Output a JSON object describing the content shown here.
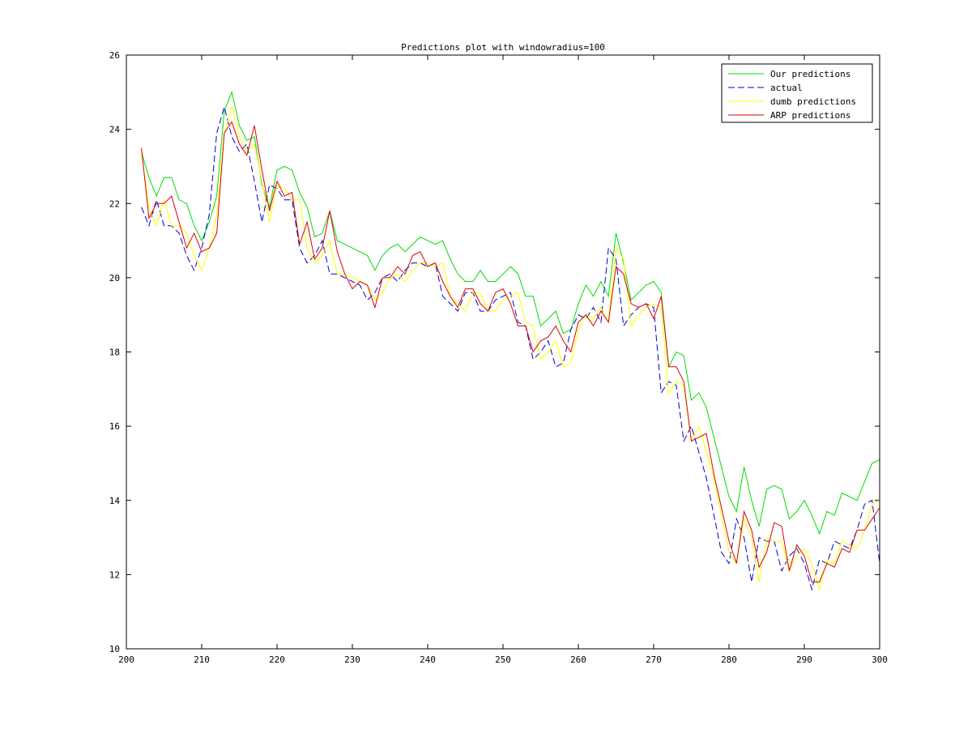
{
  "chart_data": {
    "type": "line",
    "title": "Predictions plot with windowradius=100",
    "xlabel": "",
    "ylabel": "",
    "xlim": [
      200,
      300
    ],
    "ylim": [
      10,
      26
    ],
    "x_ticks": [
      "200",
      "210",
      "220",
      "230",
      "240",
      "250",
      "260",
      "270",
      "280",
      "290",
      "300"
    ],
    "y_ticks": [
      "10",
      "12",
      "14",
      "16",
      "18",
      "20",
      "22",
      "24",
      "26"
    ],
    "grid": false,
    "legend_position": "top-right",
    "x": [
      202,
      203,
      204,
      205,
      206,
      207,
      208,
      209,
      210,
      211,
      212,
      213,
      214,
      215,
      216,
      217,
      218,
      219,
      220,
      221,
      222,
      223,
      224,
      225,
      226,
      227,
      228,
      229,
      230,
      231,
      232,
      233,
      234,
      235,
      236,
      237,
      238,
      239,
      240,
      241,
      242,
      243,
      244,
      245,
      246,
      247,
      248,
      249,
      250,
      251,
      252,
      253,
      254,
      255,
      256,
      257,
      258,
      259,
      260,
      261,
      262,
      263,
      264,
      265,
      266,
      267,
      268,
      269,
      270,
      271,
      272,
      273,
      274,
      275,
      276,
      277,
      278,
      279,
      280,
      281,
      282,
      283,
      284,
      285,
      286,
      287,
      288,
      289,
      290,
      291,
      292,
      293,
      294,
      295,
      296,
      297,
      298,
      299,
      300
    ],
    "series": [
      {
        "name": "Our predictions",
        "color": "#00dd00",
        "dash": "solid",
        "values": [
          23.4,
          22.7,
          22.2,
          22.7,
          22.7,
          22.1,
          22.0,
          21.4,
          21.0,
          21.5,
          22.2,
          24.5,
          25.0,
          24.1,
          23.7,
          23.8,
          22.5,
          21.9,
          22.9,
          23.0,
          22.9,
          22.3,
          21.9,
          21.1,
          21.2,
          21.8,
          21.0,
          20.9,
          20.8,
          20.7,
          20.6,
          20.2,
          20.6,
          20.8,
          20.9,
          20.7,
          20.9,
          21.1,
          21.0,
          20.9,
          21.0,
          20.5,
          20.1,
          19.9,
          19.9,
          20.2,
          19.9,
          19.9,
          20.1,
          20.3,
          20.1,
          19.5,
          19.5,
          18.7,
          18.9,
          19.1,
          18.5,
          18.6,
          19.3,
          19.8,
          19.5,
          19.9,
          19.5,
          21.2,
          20.4,
          19.4,
          19.6,
          19.8,
          19.9,
          19.6,
          17.6,
          18.0,
          17.9,
          16.7,
          16.9,
          16.5,
          15.7,
          14.9,
          14.1,
          13.7,
          14.9,
          14.0,
          13.3,
          14.3,
          14.4,
          14.3,
          13.5,
          13.7,
          14.0,
          13.6,
          13.1,
          13.7,
          13.6,
          14.2,
          14.1,
          14.0,
          14.5,
          15.0,
          15.1
        ]
      },
      {
        "name": "actual",
        "color": "#0000cc",
        "dash": "dashed",
        "values": [
          21.9,
          21.4,
          22.1,
          21.4,
          21.4,
          21.2,
          20.6,
          20.2,
          20.8,
          21.7,
          23.9,
          24.6,
          23.8,
          23.4,
          23.6,
          22.6,
          21.5,
          22.5,
          22.4,
          22.1,
          22.1,
          20.8,
          20.4,
          20.6,
          21.0,
          20.1,
          20.1,
          20.0,
          19.9,
          19.8,
          19.4,
          19.6,
          20.0,
          20.1,
          19.9,
          20.2,
          20.4,
          20.4,
          20.3,
          20.4,
          19.5,
          19.3,
          19.1,
          19.6,
          19.6,
          19.1,
          19.1,
          19.4,
          19.5,
          19.6,
          18.8,
          18.7,
          17.8,
          18.0,
          18.3,
          17.6,
          17.7,
          18.6,
          19.0,
          18.9,
          19.2,
          18.8,
          20.8,
          20.5,
          18.7,
          19.0,
          19.2,
          19.3,
          19.2,
          16.9,
          17.2,
          17.1,
          15.6,
          16.0,
          15.3,
          14.6,
          13.6,
          12.6,
          12.3,
          13.5,
          13.0,
          11.8,
          13.0,
          12.9,
          12.9,
          12.1,
          12.5,
          12.7,
          12.3,
          11.6,
          12.4,
          12.3,
          12.9,
          12.8,
          12.7,
          13.2,
          13.9,
          14.0,
          12.3
        ]
      },
      {
        "name": "dumb predictions",
        "color": "#ffff00",
        "dash": "solid",
        "values": [
          23.4,
          21.9,
          21.4,
          22.1,
          21.4,
          21.4,
          21.2,
          20.6,
          20.2,
          20.8,
          21.7,
          23.9,
          24.6,
          23.8,
          23.4,
          23.6,
          22.6,
          21.5,
          22.5,
          22.4,
          22.1,
          22.1,
          20.8,
          20.4,
          20.6,
          21.0,
          20.1,
          20.1,
          20.0,
          19.9,
          19.8,
          19.4,
          19.6,
          20.0,
          20.1,
          19.9,
          20.2,
          20.4,
          20.4,
          20.3,
          20.4,
          19.5,
          19.3,
          19.1,
          19.6,
          19.6,
          19.1,
          19.1,
          19.4,
          19.5,
          19.6,
          18.8,
          18.7,
          17.8,
          18.0,
          18.3,
          17.6,
          17.7,
          18.6,
          19.0,
          18.9,
          19.2,
          18.8,
          20.8,
          20.5,
          18.7,
          19.0,
          19.2,
          19.3,
          19.2,
          16.9,
          17.2,
          17.1,
          15.6,
          16.0,
          15.3,
          14.6,
          13.6,
          12.6,
          12.3,
          13.5,
          13.0,
          11.8,
          13.0,
          12.9,
          12.9,
          12.1,
          12.5,
          12.7,
          12.3,
          11.6,
          12.4,
          12.3,
          12.9,
          12.8,
          12.7,
          13.2,
          13.9,
          14.0
        ]
      },
      {
        "name": "ARP predictions",
        "color": "#dd0000",
        "dash": "solid",
        "values": [
          23.5,
          21.6,
          22.0,
          22.0,
          22.2,
          21.5,
          20.8,
          21.2,
          20.7,
          20.8,
          21.2,
          23.9,
          24.2,
          23.6,
          23.3,
          24.1,
          22.9,
          21.8,
          22.6,
          22.2,
          22.3,
          20.9,
          21.5,
          20.5,
          20.8,
          21.8,
          20.7,
          20.1,
          19.7,
          19.9,
          19.8,
          19.2,
          20.0,
          20.0,
          20.3,
          20.1,
          20.6,
          20.7,
          20.3,
          20.4,
          19.9,
          19.5,
          19.2,
          19.7,
          19.7,
          19.3,
          19.1,
          19.6,
          19.7,
          19.3,
          18.7,
          18.7,
          18.0,
          18.3,
          18.4,
          18.7,
          18.3,
          18.0,
          18.8,
          19.0,
          18.7,
          19.1,
          18.8,
          20.3,
          20.1,
          19.3,
          19.2,
          19.3,
          18.9,
          19.5,
          17.6,
          17.6,
          17.2,
          15.6,
          15.7,
          15.8,
          14.7,
          13.8,
          12.9,
          12.3,
          13.7,
          13.2,
          12.2,
          12.6,
          13.4,
          13.3,
          12.1,
          12.8,
          12.5,
          11.8,
          11.8,
          12.3,
          12.2,
          12.7,
          12.6,
          13.2,
          13.2,
          13.5,
          13.8
        ]
      }
    ]
  }
}
